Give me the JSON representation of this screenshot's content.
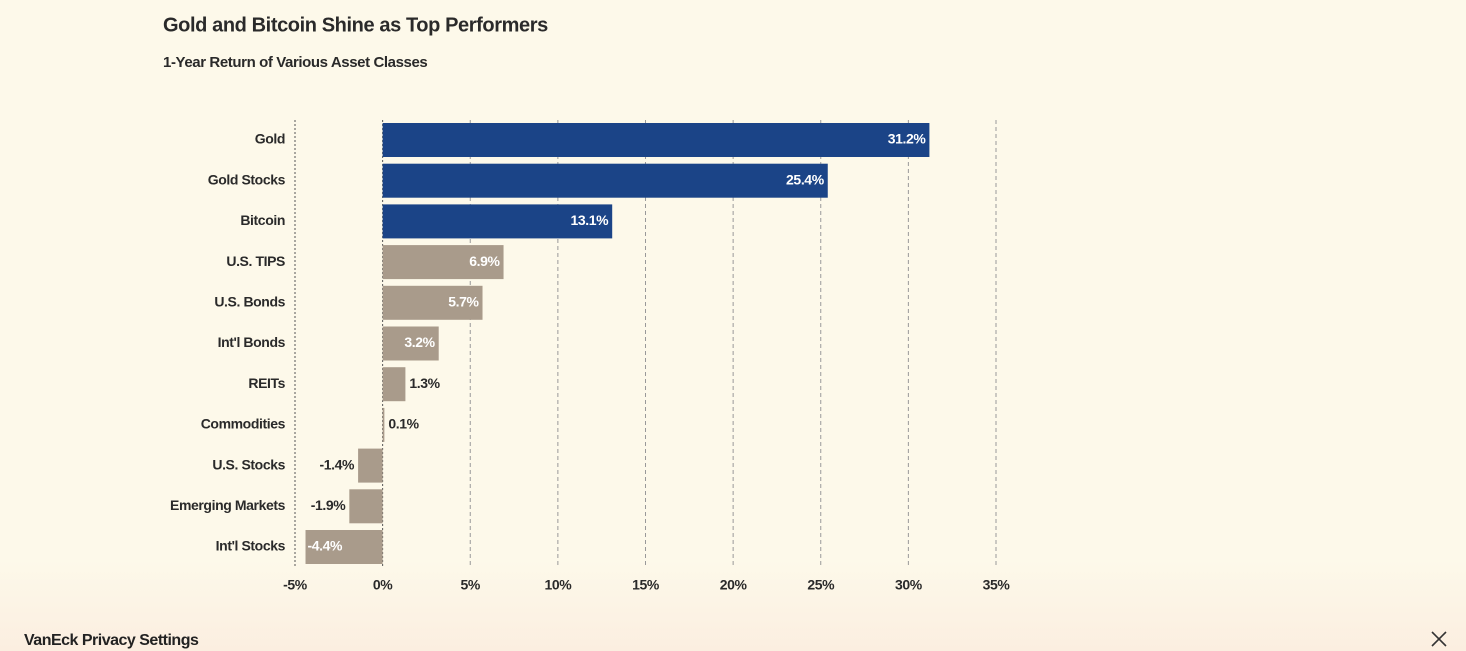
{
  "chart_data": {
    "type": "bar",
    "orientation": "horizontal",
    "title": "Gold and Bitcoin Shine as Top Performers",
    "subtitle": "1-Year Return of Various Asset Classes",
    "categories": [
      "Gold",
      "Gold Stocks",
      "Bitcoin",
      "U.S. TIPS",
      "U.S. Bonds",
      "Int'l Bonds",
      "REITs",
      "Commodities",
      "U.S. Stocks",
      "Emerging Markets",
      "Int'l Stocks"
    ],
    "values": [
      31.2,
      25.4,
      13.1,
      6.9,
      5.7,
      3.2,
      1.3,
      0.1,
      -1.4,
      -1.9,
      -4.4
    ],
    "value_labels": [
      "31.2%",
      "25.4%",
      "13.1%",
      "6.9%",
      "5.7%",
      "3.2%",
      "1.3%",
      "0.1%",
      "-1.4%",
      "-1.9%",
      "-4.4%"
    ],
    "colors": [
      "#1b4487",
      "#1b4487",
      "#1b4487",
      "#a99b8b",
      "#a99b8b",
      "#a99b8b",
      "#a99b8b",
      "#a99b8b",
      "#a99b8b",
      "#a99b8b",
      "#a99b8b"
    ],
    "xlim": [
      -5,
      35
    ],
    "xticks": [
      {
        "value": -5,
        "label": "-5%"
      },
      {
        "value": 0,
        "label": "0%"
      },
      {
        "value": 5,
        "label": "5%"
      },
      {
        "value": 10,
        "label": "10%"
      },
      {
        "value": 15,
        "label": "15%"
      },
      {
        "value": 20,
        "label": "20%"
      },
      {
        "value": 25,
        "label": "25%"
      },
      {
        "value": 30,
        "label": "30%"
      },
      {
        "value": 35,
        "label": "35%"
      }
    ],
    "grid": true
  },
  "privacy_bar": {
    "title": "VanEck Privacy Settings"
  }
}
